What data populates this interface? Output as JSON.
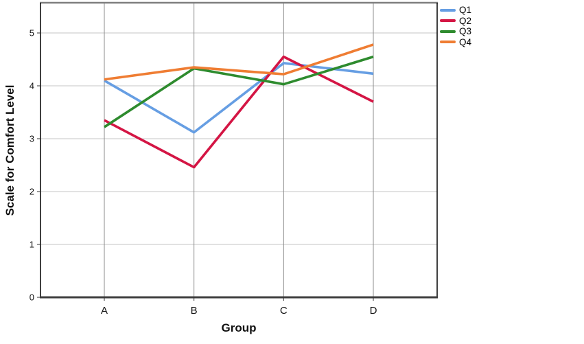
{
  "chart_data": {
    "type": "line",
    "title": "",
    "xlabel": "Group",
    "ylabel": "Scale for Comfort Level",
    "categories": [
      "A",
      "B",
      "C",
      "D"
    ],
    "series": [
      {
        "name": "Q1",
        "color": "#669EE3",
        "values": [
          4.1,
          3.12,
          4.43,
          4.23
        ]
      },
      {
        "name": "Q2",
        "color": "#D41544",
        "values": [
          3.35,
          2.46,
          4.55,
          3.7
        ]
      },
      {
        "name": "Q3",
        "color": "#2E8B2E",
        "values": [
          3.22,
          4.33,
          4.03,
          4.55
        ]
      },
      {
        "name": "Q4",
        "color": "#EF7D33",
        "values": [
          4.12,
          4.35,
          4.22,
          4.78
        ]
      }
    ],
    "yticks": [
      0,
      1,
      2,
      3,
      4,
      5
    ],
    "ylim": [
      0,
      5.57
    ],
    "grid": true,
    "legend_position": "top-right-outside"
  }
}
